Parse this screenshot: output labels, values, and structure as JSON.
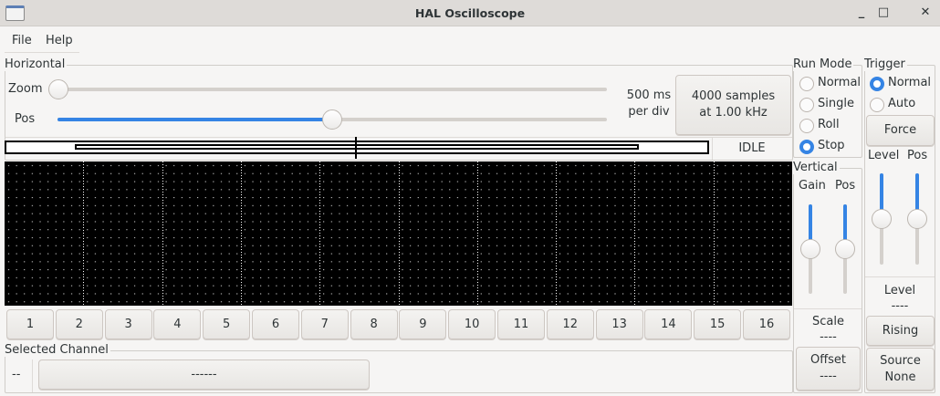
{
  "window": {
    "title": "HAL Oscilloscope",
    "controls": [
      "minimize",
      "maximize",
      "close"
    ]
  },
  "menu": [
    "File",
    "Help"
  ],
  "horizontal": {
    "label": "Horizontal",
    "zoom_label": "Zoom",
    "zoom_value": 0,
    "pos_label": "Pos",
    "pos_value": 0.5,
    "time_per_div": "500 ms",
    "per_div": "per div",
    "samples_line1": "4000 samples",
    "samples_line2": "at 1.00 kHz",
    "status": "IDLE"
  },
  "channels": [
    "1",
    "2",
    "3",
    "4",
    "5",
    "6",
    "7",
    "8",
    "9",
    "10",
    "11",
    "12",
    "13",
    "14",
    "15",
    "16"
  ],
  "selected_channel": {
    "label": "Selected Channel",
    "number": "--",
    "name": "------"
  },
  "run_mode": {
    "label": "Run Mode",
    "options": [
      "Normal",
      "Single",
      "Roll",
      "Stop"
    ],
    "selected": "Stop"
  },
  "vertical": {
    "label": "Vertical",
    "gain_label": "Gain",
    "pos_label": "Pos",
    "gain_value": 0.5,
    "pos_value": 0.5,
    "scale_label": "Scale",
    "scale_value": "----",
    "offset_label": "Offset",
    "offset_value": "----"
  },
  "trigger": {
    "label": "Trigger",
    "options": [
      "Normal",
      "Auto"
    ],
    "selected": "Normal",
    "force_label": "Force",
    "level_label": "Level",
    "pos_label": "Pos",
    "level_value": 0.5,
    "pos_value": 0.5,
    "level_readout_label": "Level",
    "level_readout_value": "----",
    "edge_label": "Rising",
    "source_label": "Source",
    "source_value": "None"
  },
  "colors": {
    "accent": "#3584e4",
    "scope_bg": "#000000",
    "grid": "#ffffff"
  }
}
